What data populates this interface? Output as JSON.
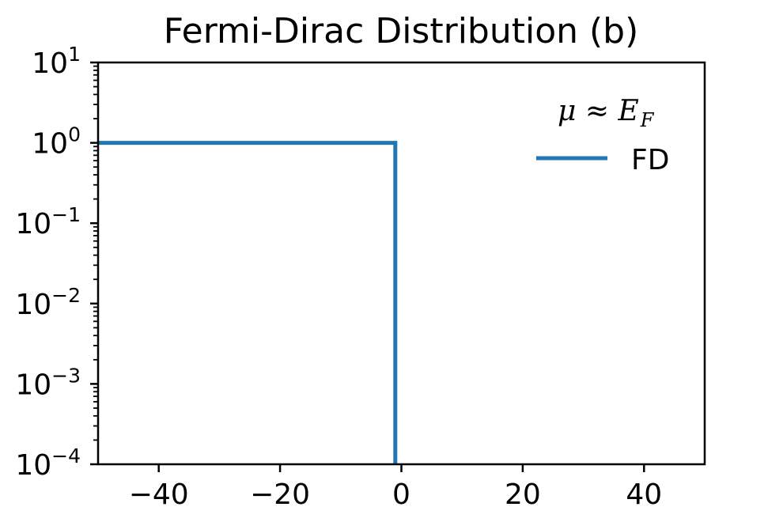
{
  "chart_data": {
    "type": "line",
    "title": "Fermi-Dirac Distribution (b)",
    "xlabel": "",
    "ylabel": "",
    "xlim": [
      -50,
      50
    ],
    "ylim": [
      0.0001,
      10
    ],
    "yscale": "log",
    "grid": false,
    "x_ticks": [
      -40,
      -20,
      0,
      20,
      40
    ],
    "x_tick_labels": [
      "−40",
      "−20",
      "0",
      "20",
      "40"
    ],
    "y_ticks": [
      10,
      1,
      0.1,
      0.01,
      0.001,
      0.0001
    ],
    "y_tick_base": "10",
    "y_tick_exponents": [
      "1",
      "0",
      "−1",
      "−2",
      "−3",
      "−4"
    ],
    "legend": {
      "placement": "top-right",
      "title_symbol": "μ ≈ E",
      "title_subscript": "F"
    },
    "series": [
      {
        "name": "FD",
        "color": "#1f77b4",
        "x": [
          -50,
          -1,
          -1
        ],
        "y": [
          1,
          1,
          0.0001
        ]
      }
    ]
  }
}
